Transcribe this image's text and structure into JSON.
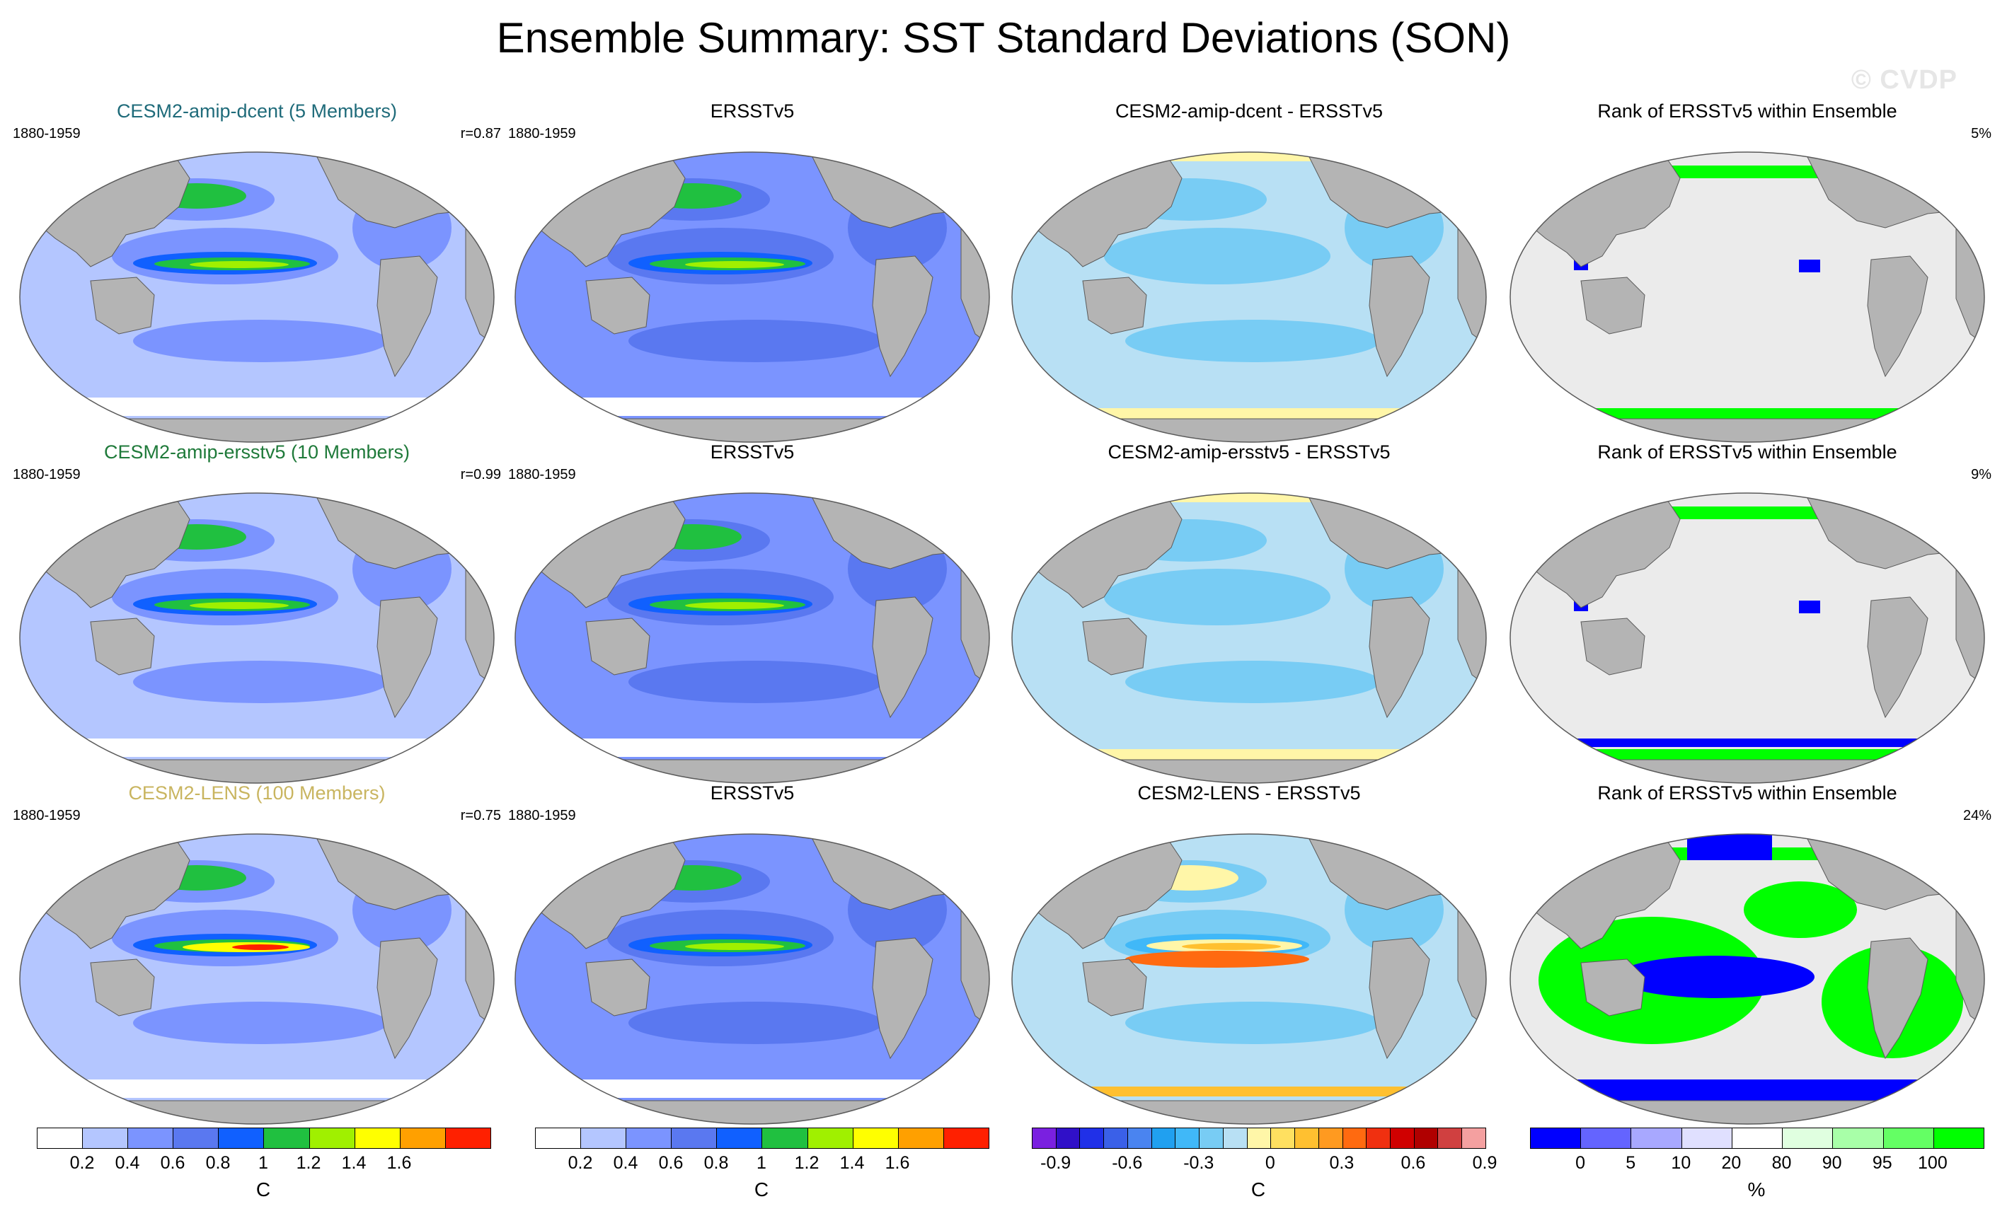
{
  "title": "Ensemble Summary: SST Standard Deviations (SON)",
  "watermark": "© CVDP",
  "chart_data": {
    "type": "map",
    "title": "Ensemble Summary: SST Standard Deviations (SON)",
    "rows": [
      {
        "model": {
          "title": "CESM2-amip-dcent (5 Members)",
          "period": "1880-1959",
          "stat": "r=0.87"
        },
        "obs": {
          "title": "ERSSTv5",
          "period": "1880-1959"
        },
        "diff": {
          "title": "CESM2-amip-dcent - ERSSTv5"
        },
        "rank": {
          "title": "Rank of ERSSTv5 within Ensemble",
          "stat": "5%"
        }
      },
      {
        "model": {
          "title": "CESM2-amip-ersstv5 (10 Members)",
          "period": "1880-1959",
          "stat": "r=0.99"
        },
        "obs": {
          "title": "ERSSTv5",
          "period": "1880-1959"
        },
        "diff": {
          "title": "CESM2-amip-ersstv5 - ERSSTv5"
        },
        "rank": {
          "title": "Rank of ERSSTv5 within Ensemble",
          "stat": "9%"
        }
      },
      {
        "model": {
          "title": "CESM2-LENS (100 Members)",
          "period": "1880-1959",
          "stat": "r=0.75"
        },
        "obs": {
          "title": "ERSSTv5",
          "period": "1880-1959"
        },
        "diff": {
          "title": "CESM2-LENS - ERSSTv5"
        },
        "rank": {
          "title": "Rank of ERSSTv5 within Ensemble",
          "stat": "24%"
        }
      }
    ],
    "colorbars": [
      {
        "unit": "C",
        "labels": [
          "0.2",
          "0.4",
          "0.6",
          "0.8",
          "1",
          "1.2",
          "1.4",
          "1.6"
        ],
        "colors": [
          "#ffffff",
          "#b4c6ff",
          "#7b94ff",
          "#5a78f0",
          "#1060ff",
          "#20c040",
          "#a0f000",
          "#ffff00",
          "#ffa000",
          "#ff2000"
        ]
      },
      {
        "unit": "C",
        "labels": [
          "0.2",
          "0.4",
          "0.6",
          "0.8",
          "1",
          "1.2",
          "1.4",
          "1.6"
        ],
        "colors": [
          "#ffffff",
          "#b4c6ff",
          "#7b94ff",
          "#5a78f0",
          "#1060ff",
          "#20c040",
          "#a0f000",
          "#ffff00",
          "#ffa000",
          "#ff2000"
        ]
      },
      {
        "unit": "C",
        "labels": [
          "-0.9",
          "-0.6",
          "-0.3",
          "0",
          "0.3",
          "0.6",
          "0.9"
        ],
        "colors": [
          "#7a20e0",
          "#3010c8",
          "#2030e8",
          "#3a60e8",
          "#4a84f0",
          "#20a0f0",
          "#40b8f8",
          "#78ccf4",
          "#b8e0f4",
          "#fff6a8",
          "#ffe060",
          "#ffc030",
          "#ff9a20",
          "#ff6a10",
          "#f03010",
          "#d00000",
          "#b00000",
          "#d04040",
          "#f4a0a0"
        ]
      },
      {
        "unit": "%",
        "labels": [
          "0",
          "5",
          "10",
          "20",
          "80",
          "90",
          "95",
          "100"
        ],
        "colors": [
          "#0000ff",
          "#6464ff",
          "#a8a8ff",
          "#e0e0ff",
          "#ffffff",
          "#e0ffe0",
          "#a8ffa8",
          "#64ff64",
          "#00ff00"
        ]
      }
    ]
  }
}
